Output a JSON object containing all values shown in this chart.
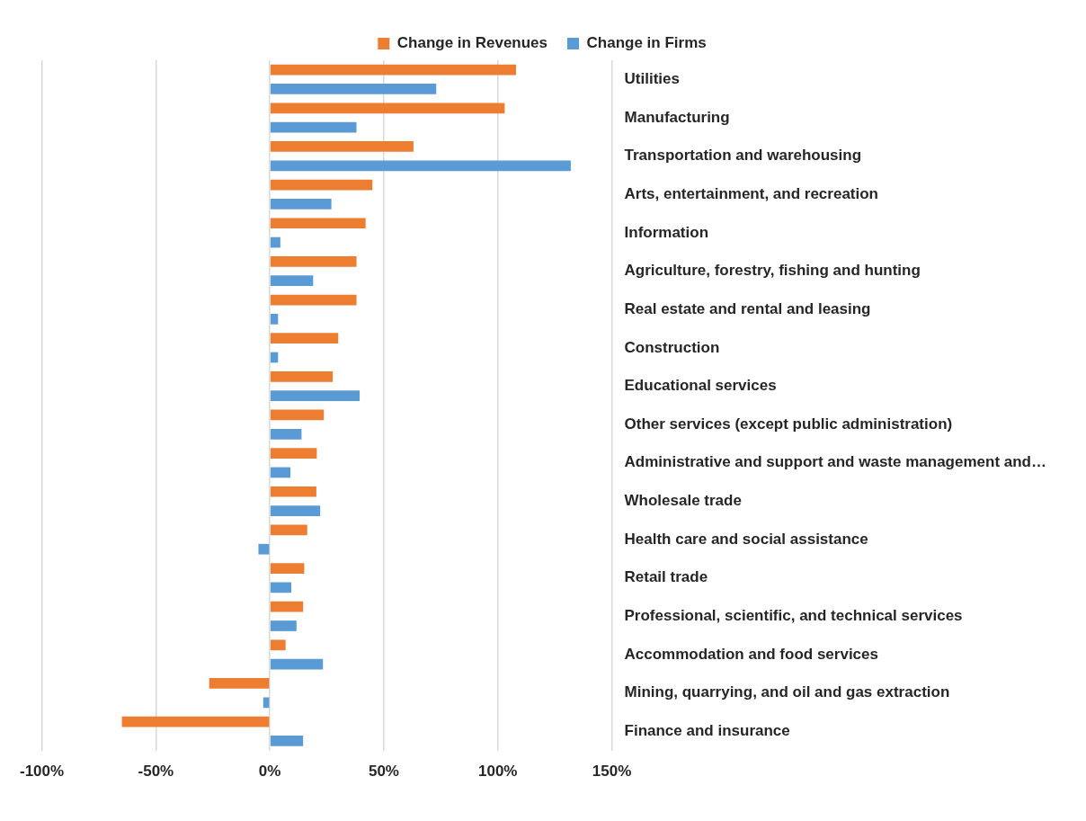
{
  "chart_data": {
    "type": "bar",
    "orientation": "horizontal",
    "categories": [
      "Utilities",
      "Manufacturing",
      "Transportation and warehousing",
      "Arts, entertainment, and recreation",
      "Information",
      "Agriculture, forestry, fishing and hunting",
      "Real estate and rental and leasing",
      "Construction",
      "Educational services",
      "Other services (except public administration)",
      "Administrative and support and waste management and…",
      "Wholesale trade",
      "Health care and social assistance",
      "Retail trade",
      "Professional, scientific, and technical services",
      "Accommodation and food services",
      "Mining, quarrying, and oil and gas extraction",
      "Finance and insurance"
    ],
    "series": [
      {
        "name": "Change in Revenues",
        "color": "#ed7d31",
        "values": [
          108,
          103,
          63,
          45,
          42,
          38,
          38,
          30,
          27.6,
          23.7,
          20.6,
          20.4,
          16.4,
          15.1,
          14.6,
          6.9,
          -26.6,
          -64.9
        ]
      },
      {
        "name": "Change in Firms",
        "color": "#5b9bd5",
        "values": [
          73,
          38,
          132,
          27,
          4.6,
          19,
          3.6,
          3.6,
          39.4,
          13.9,
          9,
          22.1,
          -5,
          9.4,
          11.7,
          23.3,
          -2.9,
          14.6
        ]
      }
    ],
    "xlim": [
      -100,
      150
    ],
    "xticks": [
      {
        "value": -100,
        "label": "-100%"
      },
      {
        "value": -50,
        "label": "-50%"
      },
      {
        "value": 0,
        "label": "0%"
      },
      {
        "value": 50,
        "label": "50%"
      },
      {
        "value": 100,
        "label": "100%"
      },
      {
        "value": 150,
        "label": "150%"
      }
    ],
    "grid": "x",
    "legend": "top"
  }
}
